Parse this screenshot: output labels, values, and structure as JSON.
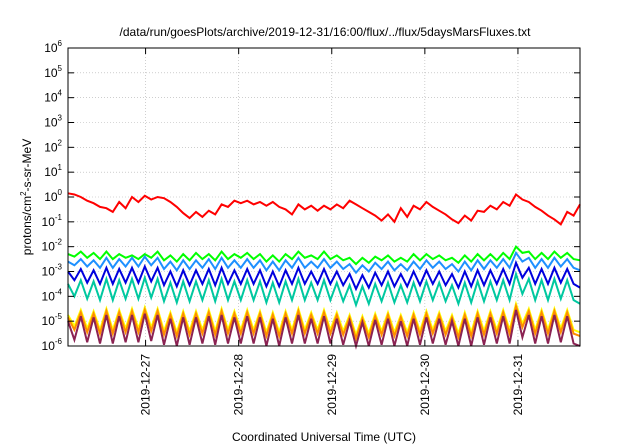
{
  "chart_data": {
    "type": "line",
    "title": "/data/run/goesPlots/archive/2019-12-31/16:00/flux/../flux/5daysMarsFluxes.txt",
    "xlabel": "Coordinated Universal Time (UTC)",
    "ylabel_prefix": "protons/cm",
    "ylabel_sup": "2",
    "ylabel_suffix": "-s-sr-MeV",
    "y_scale": "log",
    "ylim": [
      1e-06,
      1000000
    ],
    "y_ticks": [
      {
        "base": "10",
        "exp": "6",
        "value": 1000000
      },
      {
        "base": "10",
        "exp": "5",
        "value": 100000
      },
      {
        "base": "10",
        "exp": "4",
        "value": 10000
      },
      {
        "base": "10",
        "exp": "3",
        "value": 1000
      },
      {
        "base": "10",
        "exp": "2",
        "value": 100
      },
      {
        "base": "10",
        "exp": "1",
        "value": 10
      },
      {
        "base": "10",
        "exp": "0",
        "value": 1
      },
      {
        "base": "10",
        "exp": "-1",
        "value": 0.1
      },
      {
        "base": "10",
        "exp": "-2",
        "value": 0.01
      },
      {
        "base": "10",
        "exp": "-3",
        "value": 0.001
      },
      {
        "base": "10",
        "exp": "-4",
        "value": 0.0001
      },
      {
        "base": "10",
        "exp": "-5",
        "value": 1e-05
      },
      {
        "base": "10",
        "exp": "-6",
        "value": 1e-06
      }
    ],
    "xlim": [
      "2019-12-26T04:00",
      "2019-12-31T16:00"
    ],
    "x_ticks": [
      "2019-12-27",
      "2019-12-28",
      "2019-12-29",
      "2019-12-30",
      "2019-12-31"
    ],
    "grid": true,
    "legend": "none",
    "series": [
      {
        "color": "#ff0000",
        "values_log10": [
          0.15,
          0.1,
          0.0,
          -0.15,
          -0.25,
          -0.4,
          -0.45,
          -0.6,
          -0.2,
          -0.45,
          0.0,
          -0.2,
          0.05,
          -0.1,
          0.0,
          -0.05,
          -0.2,
          -0.4,
          -0.65,
          -0.85,
          -0.6,
          -0.8,
          -0.55,
          -0.7,
          -0.3,
          -0.4,
          -0.15,
          -0.25,
          -0.15,
          -0.3,
          -0.2,
          -0.35,
          -0.2,
          -0.4,
          -0.5,
          -0.7,
          -0.3,
          -0.5,
          -0.35,
          -0.55,
          -0.35,
          -0.5,
          -0.3,
          -0.45,
          -0.15,
          -0.3,
          -0.45,
          -0.6,
          -0.75,
          -0.95,
          -0.7,
          -1.0,
          -0.45,
          -0.8,
          -0.35,
          -0.5,
          -0.2,
          -0.4,
          -0.55,
          -0.7,
          -0.9,
          -1.05,
          -0.75,
          -0.95,
          -0.55,
          -0.6,
          -0.35,
          -0.5,
          -0.2,
          -0.35,
          0.1,
          -0.1,
          -0.2,
          -0.4,
          -0.55,
          -0.75,
          -0.9,
          -1.1,
          -0.6,
          -0.75,
          -0.3
        ]
      },
      {
        "color": "#00ff00",
        "values_log10": [
          -2.3,
          -2.4,
          -2.2,
          -2.45,
          -2.25,
          -2.5,
          -2.2,
          -2.5,
          -2.3,
          -2.45,
          -2.35,
          -2.5,
          -2.3,
          -2.45,
          -2.2,
          -2.55,
          -2.35,
          -2.6,
          -2.3,
          -2.55,
          -2.25,
          -2.5,
          -2.3,
          -2.55,
          -2.2,
          -2.5,
          -2.3,
          -2.45,
          -2.25,
          -2.5,
          -2.3,
          -2.6,
          -2.35,
          -2.6,
          -2.3,
          -2.5,
          -2.2,
          -2.45,
          -2.35,
          -2.5,
          -2.2,
          -2.5,
          -2.35,
          -2.55,
          -2.45,
          -2.7,
          -2.45,
          -2.65,
          -2.4,
          -2.55,
          -2.35,
          -2.6,
          -2.45,
          -2.6,
          -2.3,
          -2.55,
          -2.3,
          -2.5,
          -2.35,
          -2.55,
          -2.45,
          -2.65,
          -2.35,
          -2.6,
          -2.3,
          -2.55,
          -2.3,
          -2.55,
          -2.25,
          -2.5,
          -2.0,
          -2.25,
          -2.2,
          -2.5,
          -2.25,
          -2.5,
          -2.2,
          -2.45,
          -2.25,
          -2.5,
          -2.55
        ]
      },
      {
        "color": "#1e90ff",
        "values_log10": [
          -2.6,
          -2.75,
          -2.5,
          -2.8,
          -2.55,
          -2.85,
          -2.45,
          -2.85,
          -2.5,
          -2.8,
          -2.45,
          -2.8,
          -2.4,
          -2.75,
          -2.45,
          -2.9,
          -2.6,
          -2.95,
          -2.55,
          -2.9,
          -2.55,
          -2.85,
          -2.5,
          -2.9,
          -2.45,
          -2.85,
          -2.55,
          -2.85,
          -2.5,
          -2.85,
          -2.55,
          -2.95,
          -2.6,
          -2.95,
          -2.55,
          -2.85,
          -2.45,
          -2.85,
          -2.6,
          -2.85,
          -2.5,
          -2.85,
          -2.6,
          -2.9,
          -2.7,
          -3.05,
          -2.75,
          -3.0,
          -2.65,
          -2.9,
          -2.6,
          -2.95,
          -2.7,
          -2.95,
          -2.6,
          -2.9,
          -2.55,
          -2.85,
          -2.6,
          -2.9,
          -2.7,
          -3.0,
          -2.6,
          -2.95,
          -2.55,
          -2.9,
          -2.55,
          -2.85,
          -2.5,
          -2.85,
          -2.25,
          -2.6,
          -2.45,
          -2.85,
          -2.5,
          -2.85,
          -2.45,
          -2.8,
          -2.5,
          -2.85,
          -2.95
        ]
      },
      {
        "color": "#0000dd",
        "values_log10": [
          -3.0,
          -3.35,
          -2.9,
          -3.45,
          -2.95,
          -3.5,
          -2.85,
          -3.5,
          -2.9,
          -3.45,
          -2.85,
          -3.45,
          -2.8,
          -3.4,
          -2.85,
          -3.55,
          -3.0,
          -3.6,
          -2.95,
          -3.55,
          -2.95,
          -3.5,
          -2.9,
          -3.55,
          -2.85,
          -3.5,
          -2.95,
          -3.5,
          -2.9,
          -3.5,
          -2.95,
          -3.6,
          -3.0,
          -3.6,
          -2.95,
          -3.5,
          -2.85,
          -3.5,
          -3.0,
          -3.5,
          -2.9,
          -3.5,
          -3.0,
          -3.55,
          -3.1,
          -3.7,
          -3.15,
          -3.65,
          -3.05,
          -3.55,
          -3.0,
          -3.6,
          -3.1,
          -3.6,
          -3.0,
          -3.55,
          -2.95,
          -3.5,
          -3.0,
          -3.55,
          -3.1,
          -3.65,
          -3.0,
          -3.6,
          -2.95,
          -3.55,
          -2.95,
          -3.5,
          -2.9,
          -3.5,
          -2.65,
          -3.25,
          -2.85,
          -3.5,
          -2.9,
          -3.5,
          -2.85,
          -3.45,
          -2.9,
          -3.5,
          -3.65
        ]
      },
      {
        "color": "#00c8a0",
        "values_log10": [
          -3.5,
          -4.0,
          -3.35,
          -4.1,
          -3.4,
          -4.15,
          -3.3,
          -4.15,
          -3.35,
          -4.1,
          -3.3,
          -4.1,
          -3.25,
          -4.05,
          -3.3,
          -4.2,
          -3.45,
          -4.25,
          -3.4,
          -4.2,
          -3.4,
          -4.15,
          -3.35,
          -4.2,
          -3.3,
          -4.15,
          -3.4,
          -4.15,
          -3.35,
          -4.15,
          -3.4,
          -4.25,
          -3.45,
          -4.25,
          -3.4,
          -4.15,
          -3.3,
          -4.15,
          -3.45,
          -4.15,
          -3.35,
          -4.15,
          -3.45,
          -4.2,
          -3.55,
          -4.35,
          -3.6,
          -4.3,
          -3.5,
          -4.2,
          -3.45,
          -4.25,
          -3.55,
          -4.25,
          -3.45,
          -4.2,
          -3.4,
          -4.15,
          -3.45,
          -4.2,
          -3.55,
          -4.3,
          -3.45,
          -4.25,
          -3.4,
          -4.2,
          -3.4,
          -4.15,
          -3.35,
          -4.15,
          -3.1,
          -3.9,
          -3.3,
          -4.15,
          -3.35,
          -4.15,
          -3.3,
          -4.1,
          -3.35,
          -4.15,
          -4.3
        ]
      },
      {
        "color": "#ffff00",
        "values_log10": [
          -4.75,
          -5.2,
          -4.55,
          -5.3,
          -4.6,
          -5.35,
          -4.5,
          -5.35,
          -4.55,
          -5.3,
          -4.5,
          -5.3,
          -4.45,
          -5.25,
          -4.5,
          -5.4,
          -4.65,
          -5.45,
          -4.6,
          -5.4,
          -4.6,
          -5.35,
          -4.55,
          -5.4,
          -4.5,
          -5.35,
          -4.6,
          -5.35,
          -4.55,
          -5.35,
          -4.6,
          -5.45,
          -4.65,
          -5.45,
          -4.6,
          -5.35,
          -4.5,
          -5.35,
          -4.65,
          -5.35,
          -4.55,
          -5.35,
          -4.65,
          -5.4,
          -4.75,
          -5.55,
          -4.8,
          -5.5,
          -4.7,
          -5.4,
          -4.65,
          -5.45,
          -4.75,
          -5.45,
          -4.65,
          -5.4,
          -4.6,
          -5.35,
          -4.65,
          -5.4,
          -4.75,
          -5.5,
          -4.65,
          -5.45,
          -4.6,
          -5.4,
          -4.6,
          -5.35,
          -4.55,
          -5.35,
          -4.3,
          -5.1,
          -4.5,
          -5.35,
          -4.55,
          -5.35,
          -4.5,
          -5.3,
          -4.55,
          -5.35,
          -5.45
        ]
      },
      {
        "color": "#ff8c00",
        "values_log10": [
          -4.85,
          -5.35,
          -4.65,
          -5.45,
          -4.7,
          -5.5,
          -4.6,
          -5.5,
          -4.65,
          -5.45,
          -4.6,
          -5.45,
          -4.55,
          -5.4,
          -4.6,
          -5.55,
          -4.75,
          -5.6,
          -4.7,
          -5.55,
          -4.7,
          -5.5,
          -4.65,
          -5.55,
          -4.6,
          -5.5,
          -4.7,
          -5.5,
          -4.65,
          -5.5,
          -4.7,
          -5.6,
          -4.75,
          -5.6,
          -4.7,
          -5.5,
          -4.6,
          -5.5,
          -4.75,
          -5.5,
          -4.65,
          -5.5,
          -4.75,
          -5.55,
          -4.85,
          -5.7,
          -4.9,
          -5.65,
          -4.8,
          -5.55,
          -4.75,
          -5.6,
          -4.85,
          -5.6,
          -4.75,
          -5.55,
          -4.7,
          -5.5,
          -4.75,
          -5.55,
          -4.85,
          -5.65,
          -4.75,
          -5.6,
          -4.7,
          -5.55,
          -4.7,
          -5.5,
          -4.65,
          -5.5,
          -4.4,
          -5.25,
          -4.6,
          -5.5,
          -4.65,
          -5.5,
          -4.6,
          -5.45,
          -4.65,
          -5.5,
          -5.6
        ]
      },
      {
        "color": "#8b2252",
        "values_log10": [
          -5.0,
          -5.75,
          -4.8,
          -5.85,
          -4.85,
          -5.9,
          -4.75,
          -5.9,
          -4.8,
          -5.85,
          -4.75,
          -5.85,
          -4.7,
          -5.8,
          -4.75,
          -5.95,
          -4.9,
          -6.0,
          -4.85,
          -5.95,
          -4.85,
          -5.9,
          -4.8,
          -5.95,
          -4.75,
          -5.9,
          -4.85,
          -5.9,
          -4.8,
          -5.9,
          -4.85,
          -6.0,
          -4.9,
          -6.0,
          -4.85,
          -5.9,
          -4.75,
          -5.9,
          -4.9,
          -5.9,
          -4.8,
          -5.9,
          -4.9,
          -5.95,
          -5.0,
          -6.0,
          -5.05,
          -6.0,
          -4.95,
          -5.95,
          -4.9,
          -6.0,
          -5.0,
          -6.0,
          -4.9,
          -5.95,
          -4.85,
          -5.9,
          -4.9,
          -5.95,
          -5.0,
          -6.0,
          -4.9,
          -6.0,
          -4.85,
          -5.95,
          -4.85,
          -5.9,
          -4.8,
          -5.9,
          -4.55,
          -5.65,
          -4.75,
          -5.9,
          -4.8,
          -5.9,
          -4.75,
          -5.85,
          -4.8,
          -5.9,
          -6.0
        ]
      }
    ]
  }
}
